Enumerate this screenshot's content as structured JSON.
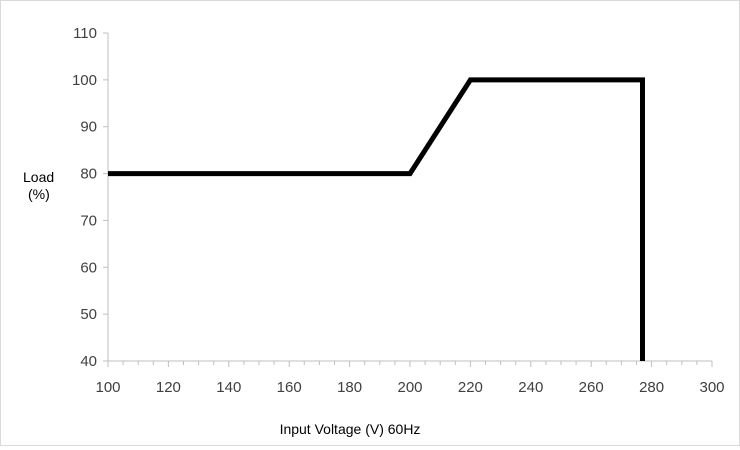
{
  "chart_data": {
    "type": "line",
    "title": "",
    "xlabel": "Input Voltage (V) 60Hz",
    "ylabel_lines": [
      "Load",
      "(%)"
    ],
    "xlim": [
      100,
      300
    ],
    "ylim": [
      40,
      110
    ],
    "x_ticks": [
      100,
      120,
      140,
      160,
      180,
      200,
      220,
      240,
      260,
      280,
      300
    ],
    "y_ticks": [
      40,
      50,
      60,
      70,
      80,
      90,
      100,
      110
    ],
    "grid": false,
    "legend": "none",
    "series": [
      {
        "color": "#000000",
        "points": [
          {
            "x": 100,
            "y": 80
          },
          {
            "x": 200,
            "y": 80
          },
          {
            "x": 220,
            "y": 100
          },
          {
            "x": 277,
            "y": 100
          },
          {
            "x": 277,
            "y": 40
          }
        ]
      }
    ]
  }
}
